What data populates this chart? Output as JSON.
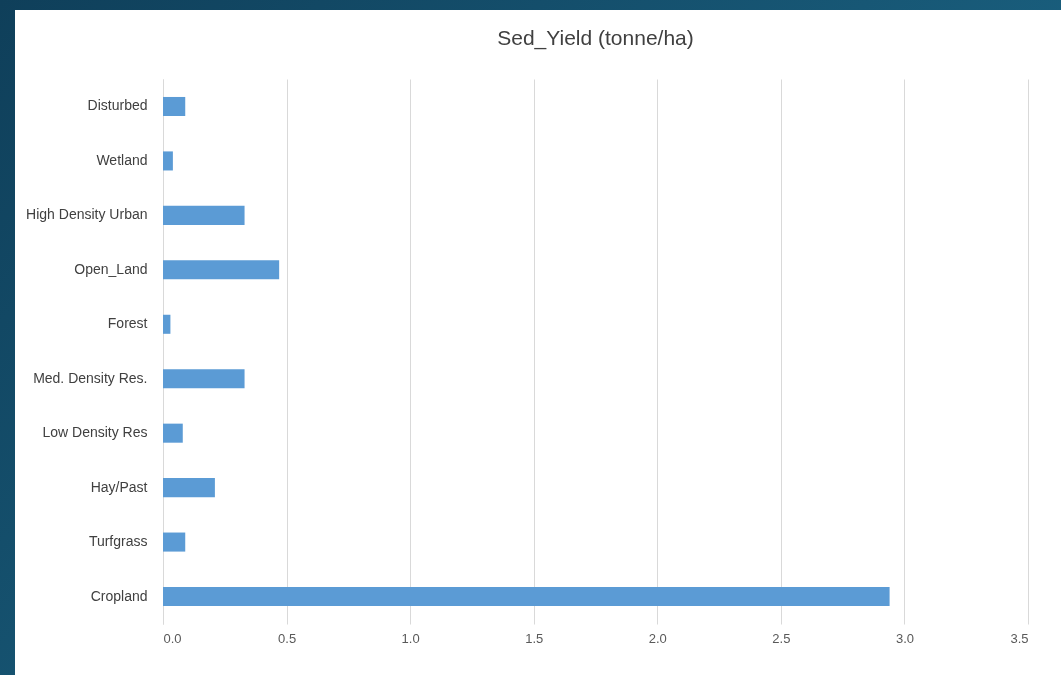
{
  "chart_data": {
    "type": "bar",
    "orientation": "horizontal",
    "title": "Sed_Yield (tonne/ha)",
    "categories": [
      "Disturbed",
      "Wetland",
      "High Density Urban",
      "Open_Land",
      "Forest",
      "Med. Density Res.",
      "Low Density Res",
      "Hay/Past",
      "Turfgrass",
      "Cropland"
    ],
    "values": [
      0.09,
      0.04,
      0.33,
      0.47,
      0.03,
      0.33,
      0.08,
      0.21,
      0.09,
      2.94
    ],
    "color": "#5b9bd5",
    "xlim": [
      0,
      3.5
    ],
    "xticks": [
      {
        "value": 0,
        "label": "0.0"
      },
      {
        "value": 0.5,
        "label": "0.5"
      },
      {
        "value": 1,
        "label": "1.0"
      },
      {
        "value": 1.5,
        "label": "1.5"
      },
      {
        "value": 2,
        "label": "2.0"
      },
      {
        "value": 2.5,
        "label": "2.5"
      },
      {
        "value": 3,
        "label": "3.0"
      },
      {
        "value": 3.5,
        "label": "3.5"
      }
    ],
    "grid": "x"
  }
}
